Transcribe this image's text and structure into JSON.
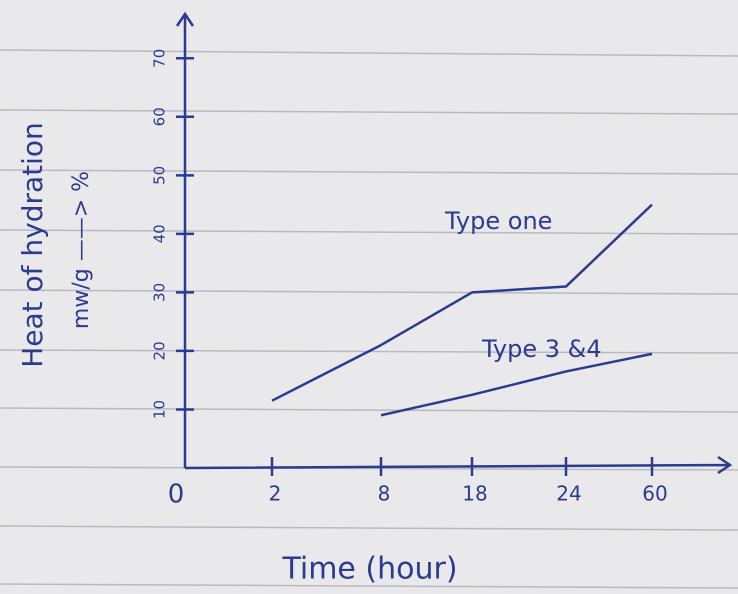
{
  "chart_data": {
    "type": "line",
    "xlabel": "Time (hour)",
    "ylabel": "Heat of hydration",
    "ylabel_unit": "mw/g ——> %",
    "categories": [
      "0",
      "2",
      "8",
      "18",
      "24",
      "60"
    ],
    "series": [
      {
        "name": "Type one",
        "color": "#2b3b8f",
        "values": [
          null,
          11.5,
          21,
          30,
          31,
          45
        ]
      },
      {
        "name": "Type 3 &4",
        "color": "#2b3b8f",
        "values": [
          null,
          null,
          9,
          12.5,
          16.5,
          19.5
        ]
      }
    ],
    "ylim": [
      0,
      75
    ],
    "yticks": [
      10,
      20,
      30,
      40,
      50,
      60,
      70
    ]
  }
}
